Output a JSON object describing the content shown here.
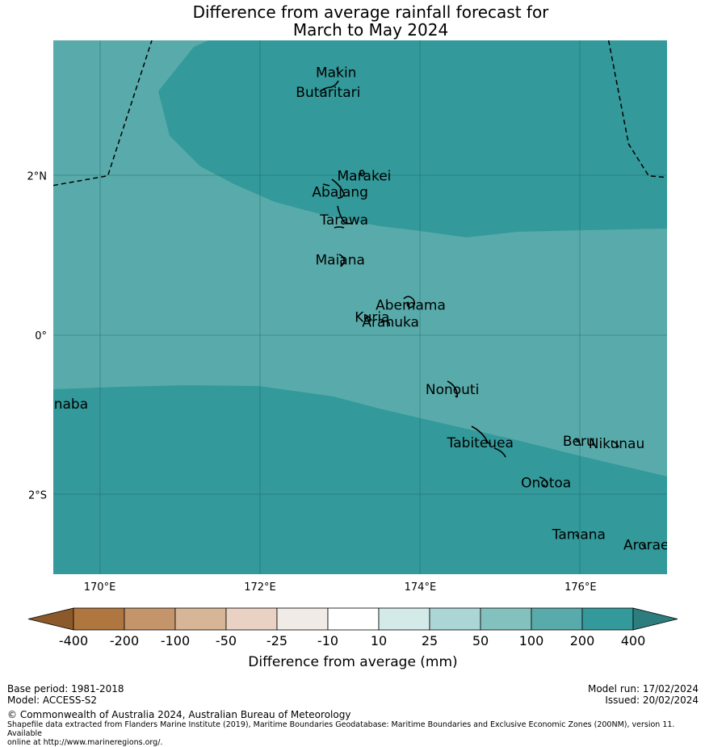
{
  "title": {
    "line1": "Difference from average rainfall forecast for",
    "line2": "March to May 2024"
  },
  "map": {
    "lon_range": [
      169.42,
      177.08
    ],
    "lat_range": [
      -3.0,
      3.7
    ],
    "lon_ticks": [
      {
        "value": 170,
        "label": "170°E"
      },
      {
        "value": 172,
        "label": "172°E"
      },
      {
        "value": 174,
        "label": "174°E"
      },
      {
        "value": 176,
        "label": "176°E"
      }
    ],
    "lat_ticks": [
      {
        "value": 2,
        "label": "2°N"
      },
      {
        "value": 0,
        "label": "0°"
      },
      {
        "value": -2,
        "label": "2°S"
      }
    ],
    "islands": [
      {
        "name": "Makin",
        "lon": 172.95,
        "lat": 3.3
      },
      {
        "name": "Butaritari",
        "lon": 172.85,
        "lat": 3.05
      },
      {
        "name": "Marakei",
        "lon": 173.3,
        "lat": 2.0
      },
      {
        "name": "Abaiang",
        "lon": 173.0,
        "lat": 1.8
      },
      {
        "name": "Tarawa",
        "lon": 173.05,
        "lat": 1.45
      },
      {
        "name": "Maiana",
        "lon": 173.0,
        "lat": 0.95
      },
      {
        "name": "Abemama",
        "lon": 173.88,
        "lat": 0.38
      },
      {
        "name": "Kuria",
        "lon": 173.4,
        "lat": 0.23
      },
      {
        "name": "Aranuka",
        "lon": 173.63,
        "lat": 0.17
      },
      {
        "name": "Nonouti",
        "lon": 174.4,
        "lat": -0.68
      },
      {
        "name": "Banaba",
        "lon": 169.53,
        "lat": -0.86
      },
      {
        "name": "Beru",
        "lon": 175.98,
        "lat": -1.33
      },
      {
        "name": "Tabiteuea",
        "lon": 174.75,
        "lat": -1.35
      },
      {
        "name": "Nikunau",
        "lon": 176.45,
        "lat": -1.36
      },
      {
        "name": "Onotoa",
        "lon": 175.57,
        "lat": -1.85
      },
      {
        "name": "Tamana",
        "lon": 175.98,
        "lat": -2.5
      },
      {
        "name": "Arorae",
        "lon": 176.82,
        "lat": -2.63
      }
    ],
    "eez_boundary_west": [
      [
        169.42,
        1.88
      ],
      [
        170.1,
        2.0
      ],
      [
        170.65,
        3.7
      ]
    ],
    "eez_boundary_east": [
      [
        176.35,
        3.7
      ],
      [
        176.6,
        2.4
      ],
      [
        176.85,
        2.0
      ],
      [
        177.08,
        1.98
      ]
    ]
  },
  "colorbar": {
    "tick_labels": [
      "-400",
      "-200",
      "-100",
      "-50",
      "-25",
      "-10",
      "10",
      "25",
      "50",
      "100",
      "200",
      "400"
    ],
    "colors": [
      "#8c5a2a",
      "#b0763f",
      "#c4956b",
      "#d7b597",
      "#e9d2c3",
      "#f0ebe6",
      "#ffffff",
      "#d4eae9",
      "#acd6d5",
      "#83c1be",
      "#58abaa",
      "#33999a",
      "#2d7d7e"
    ],
    "label": "Difference from average (mm)"
  },
  "footer": {
    "base_period": "Base period: 1981-2018",
    "model": "Model: ACCESS-S2",
    "model_run": "Model run: 17/02/2024",
    "issued": "Issued: 20/02/2024",
    "copyright": "© Commonwealth of Australia 2024, Australian Bureau of Meteorology",
    "shapefile_line1": "Shapefile data extracted from Flanders Marine Institute (2019), Maritime Boundaries Geodatabase: Maritime Boundaries and Exclusive Economic Zones (200NM), version 11. Available",
    "shapefile_line2": "online at http://www.marineregions.org/."
  }
}
